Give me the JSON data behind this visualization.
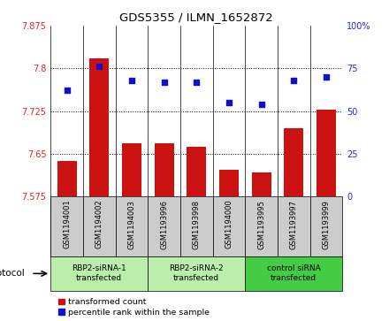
{
  "title": "GDS5355 / ILMN_1652872",
  "samples": [
    "GSM1194001",
    "GSM1194002",
    "GSM1194003",
    "GSM1193996",
    "GSM1193998",
    "GSM1194000",
    "GSM1193995",
    "GSM1193997",
    "GSM1193999"
  ],
  "bar_values": [
    7.638,
    7.818,
    7.668,
    7.668,
    7.663,
    7.622,
    7.617,
    7.695,
    7.728
  ],
  "scatter_values": [
    62,
    76,
    68,
    67,
    67,
    55,
    54,
    68,
    70
  ],
  "ylim_left": [
    7.575,
    7.875
  ],
  "ylim_right": [
    0,
    100
  ],
  "yticks_left": [
    7.575,
    7.65,
    7.725,
    7.8,
    7.875
  ],
  "yticks_right": [
    0,
    25,
    50,
    75,
    100
  ],
  "bar_color": "#cc1111",
  "scatter_color": "#1111cc",
  "proto_groups": [
    {
      "label": "RBP2-siRNA-1\ntransfected",
      "start": 0,
      "end": 2,
      "color": "#bbeeaa"
    },
    {
      "label": "RBP2-siRNA-2\ntransfected",
      "start": 3,
      "end": 5,
      "color": "#bbeeaa"
    },
    {
      "label": "control siRNA\ntransfected",
      "start": 6,
      "end": 8,
      "color": "#44cc44"
    }
  ],
  "legend_items": [
    {
      "label": "transformed count",
      "color": "#cc1111"
    },
    {
      "label": "percentile rank within the sample",
      "color": "#1111cc"
    }
  ],
  "protocol_label": "protocol",
  "background_color": "#ffffff",
  "tick_color_left": "#dd2222",
  "tick_color_right": "#2222dd",
  "bar_width": 0.6,
  "base_value": 7.575,
  "sample_cell_color": "#cccccc",
  "grid_color": "#000000"
}
